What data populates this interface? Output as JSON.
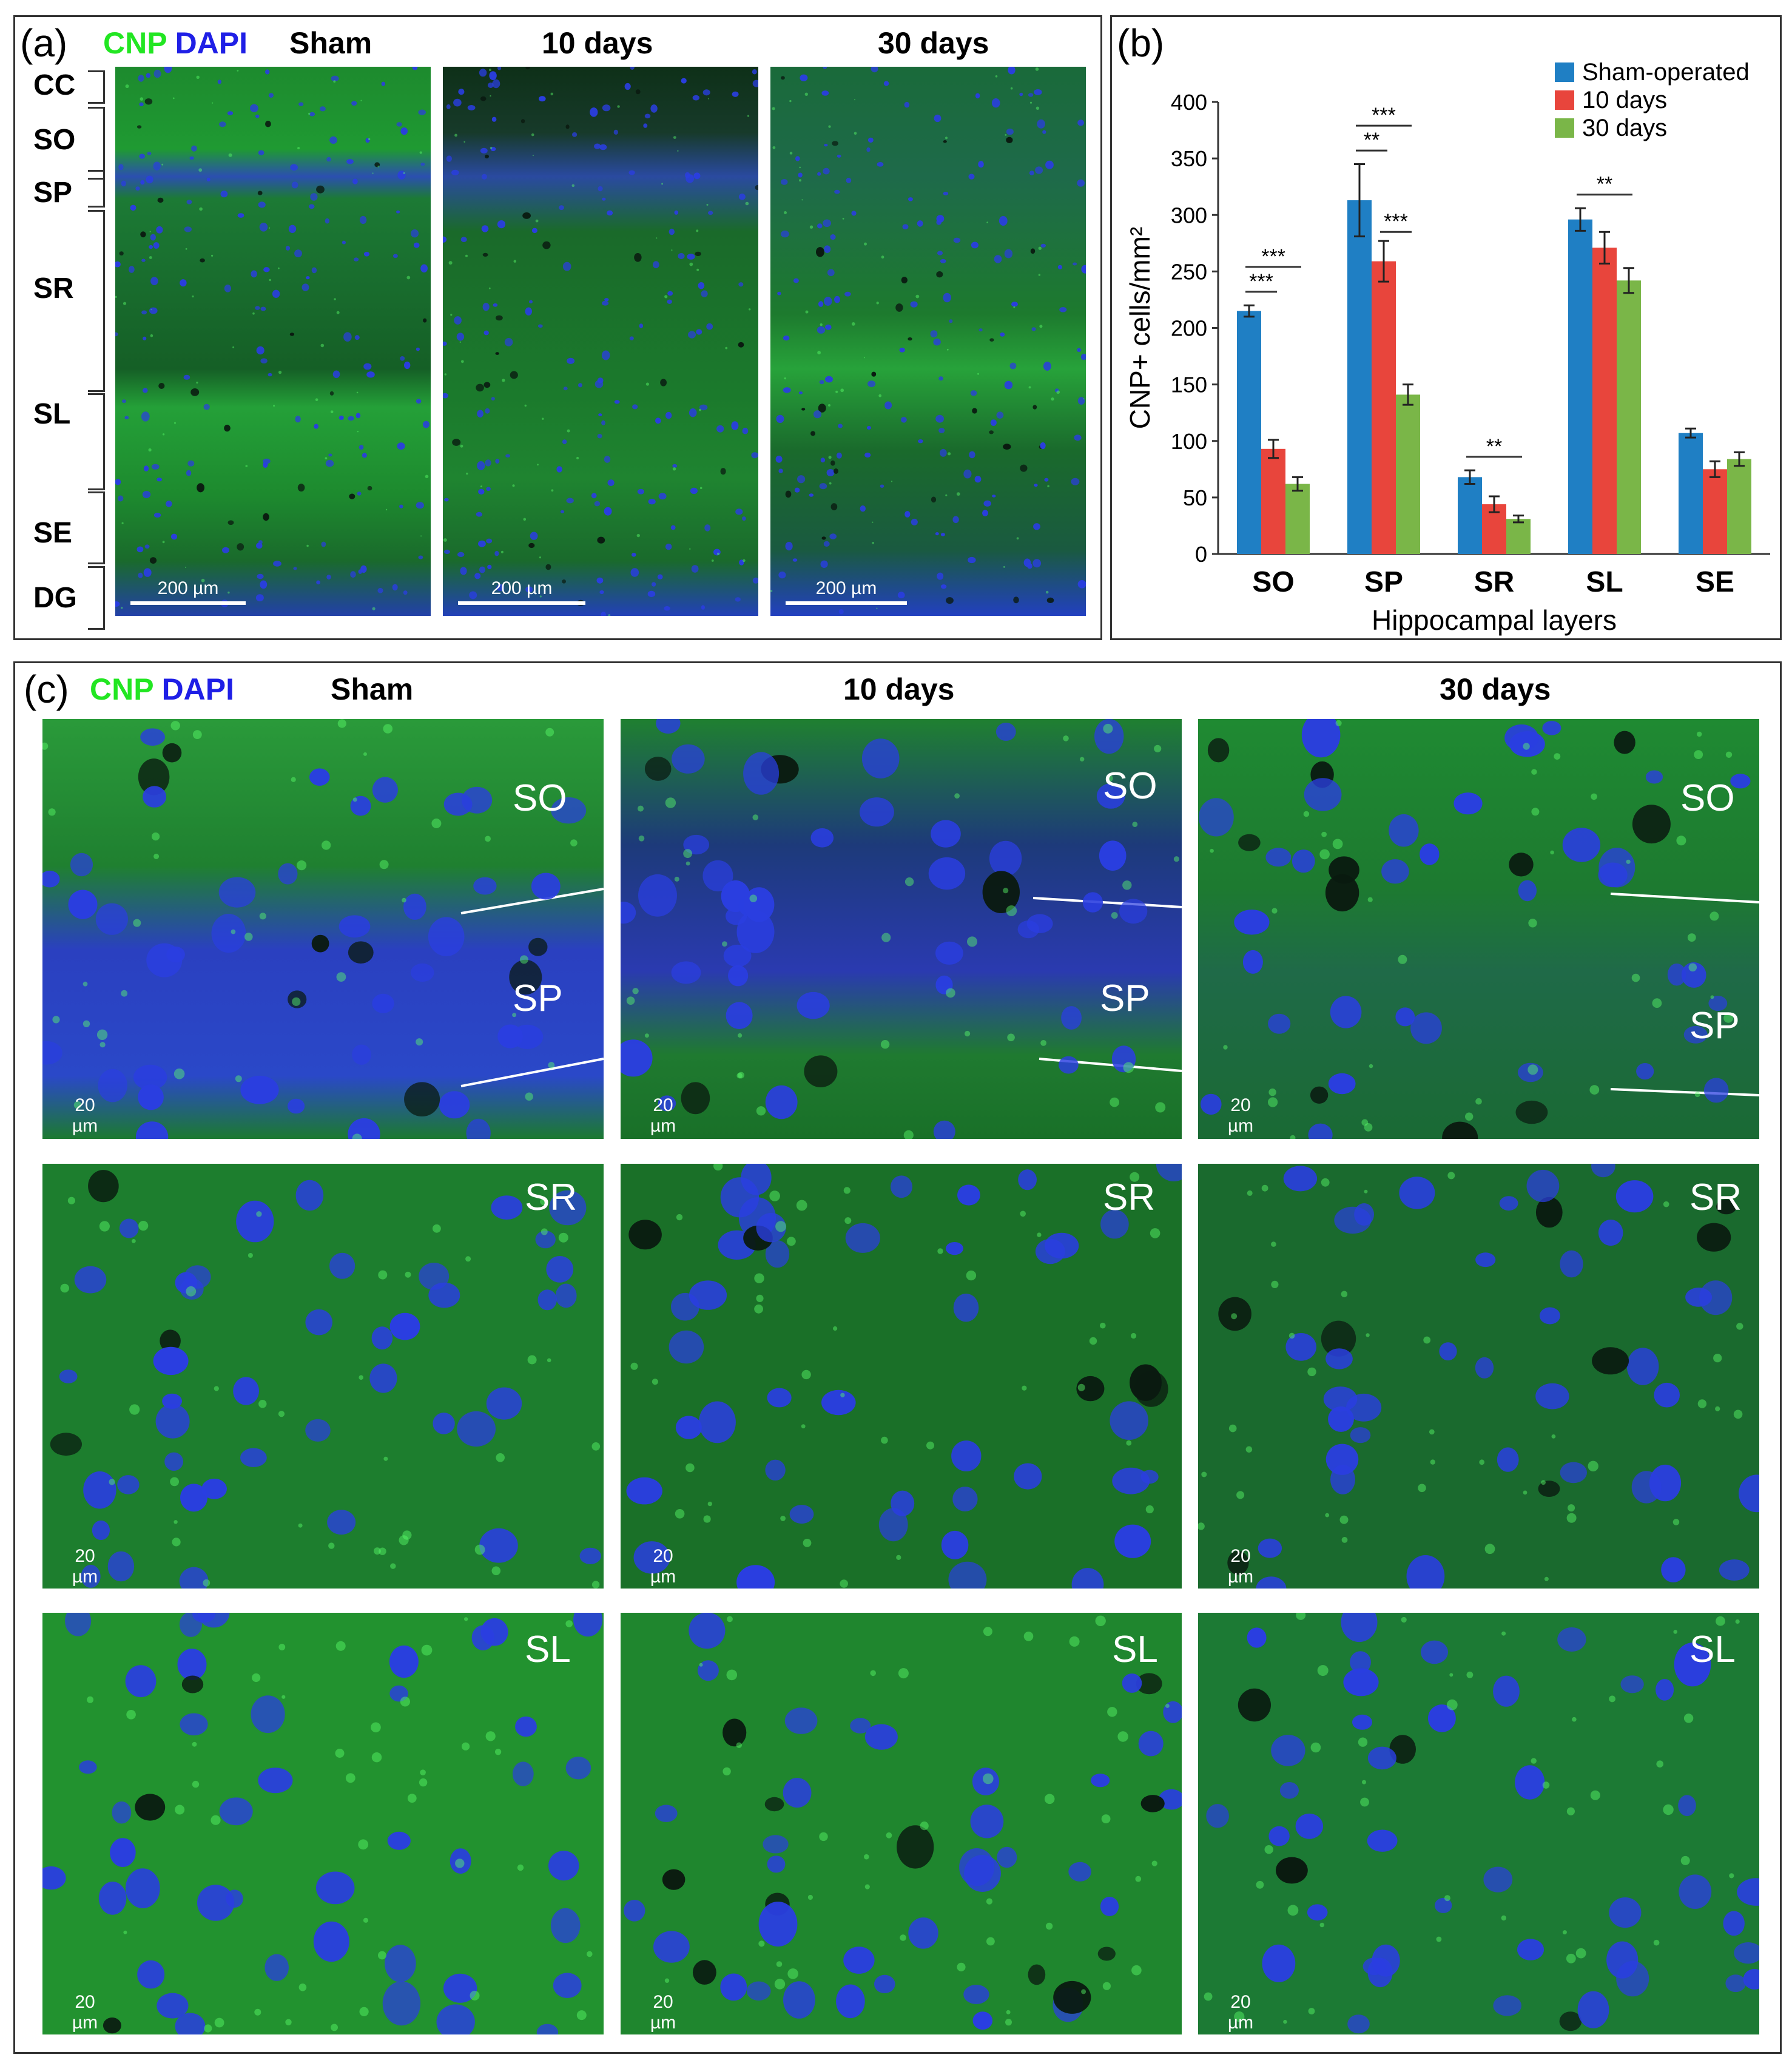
{
  "panel_a": {
    "label": "(a)",
    "stain_cnp": "CNP",
    "stain_dapi": "DAPI",
    "columns": [
      "Sham",
      "10 days",
      "30 days"
    ],
    "layers": [
      "CC",
      "SO",
      "SP",
      "SR",
      "SL",
      "SE",
      "DG"
    ],
    "scale_bar": "200 µm"
  },
  "panel_b": {
    "label": "(b)"
  },
  "chart_data": {
    "type": "bar",
    "categories": [
      "SO",
      "SP",
      "SR",
      "SL",
      "SE"
    ],
    "series": [
      {
        "name": "Sham-operated",
        "color": "#1f7fc4",
        "values": [
          215,
          313,
          68,
          296,
          107
        ],
        "errors": [
          5,
          32,
          6,
          10,
          4
        ]
      },
      {
        "name": "10 days",
        "color": "#e8453c",
        "values": [
          93,
          259,
          44,
          271,
          75
        ],
        "errors": [
          8,
          18,
          7,
          14,
          7
        ]
      },
      {
        "name": "30 days",
        "color": "#7ab648",
        "values": [
          62,
          141,
          31,
          242,
          84
        ],
        "errors": [
          6,
          9,
          3,
          11,
          6
        ]
      }
    ],
    "ylabel": "CNP+ cells/mm²",
    "xlabel": "Hippocampal layers",
    "ylim": [
      0,
      400
    ],
    "yticks": [
      0,
      50,
      100,
      150,
      200,
      250,
      300,
      350,
      400
    ],
    "legend_position": "top-right",
    "significance": [
      {
        "label": "***",
        "category": 0,
        "from": 0,
        "to": 2,
        "level": 1
      },
      {
        "label": "***",
        "category": 0,
        "from": 0,
        "to": 1,
        "level": 0
      },
      {
        "label": "***",
        "category": 1,
        "from": 0,
        "to": 2,
        "level": 1
      },
      {
        "label": "**",
        "category": 1,
        "from": 0,
        "to": 1,
        "level": 0
      },
      {
        "label": "***",
        "category": 1,
        "from": 1,
        "to": 2,
        "level": -1
      },
      {
        "label": "**",
        "category": 2,
        "from": 0,
        "to": 2,
        "level": 0
      },
      {
        "label": "**",
        "category": 3,
        "from": 0,
        "to": 2,
        "level": 0
      }
    ]
  },
  "panel_c": {
    "label": "(c)",
    "stain_cnp": "CNP",
    "stain_dapi": "DAPI",
    "columns": [
      "Sham",
      "10 days",
      "30 days"
    ],
    "row_labels": [
      [
        "SO",
        "SP"
      ],
      [
        "SR"
      ],
      [
        "SL"
      ]
    ],
    "scale_bar": "20 µm"
  }
}
